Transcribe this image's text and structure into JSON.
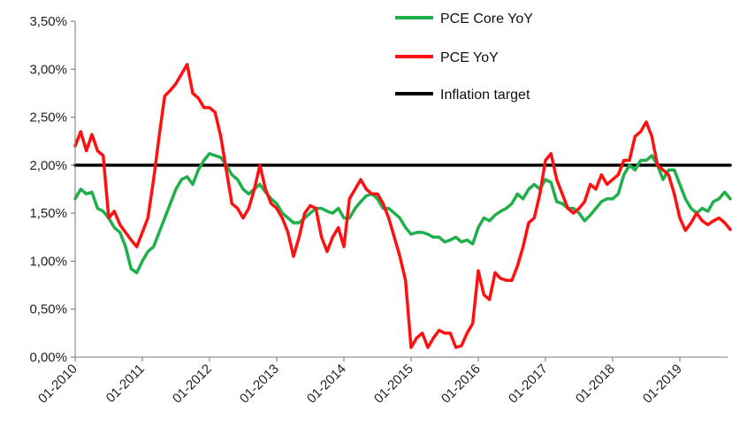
{
  "chart_data": {
    "type": "line",
    "title": "",
    "xlabel": "",
    "ylabel": "",
    "x_range": [
      "2010-01",
      "2019-10"
    ],
    "ylim": [
      0,
      3.5
    ],
    "yticks": [
      0,
      0.5,
      1.0,
      1.5,
      2.0,
      2.5,
      3.0,
      3.5
    ],
    "ytick_labels": [
      "0,00%",
      "0,50%",
      "1,00%",
      "1,50%",
      "2,00%",
      "2,50%",
      "3,00%",
      "3,50%"
    ],
    "xticks": [
      "2010-01",
      "2011-01",
      "2012-01",
      "2013-01",
      "2014-01",
      "2015-01",
      "2016-01",
      "2017-01",
      "2018-01",
      "2019-01"
    ],
    "xtick_labels": [
      "01-2010",
      "01-2011",
      "01-2012",
      "01-2013",
      "01-2014",
      "01-2015",
      "01-2016",
      "01-2017",
      "01-2018",
      "01-2019"
    ],
    "grid": false,
    "legend_position": "top-right",
    "series": [
      {
        "name": "PCE Core YoY",
        "color": "#20b04b",
        "points": [
          [
            "2010-01",
            1.65
          ],
          [
            "2010-02",
            1.75
          ],
          [
            "2010-03",
            1.7
          ],
          [
            "2010-04",
            1.72
          ],
          [
            "2010-05",
            1.55
          ],
          [
            "2010-06",
            1.52
          ],
          [
            "2010-07",
            1.45
          ],
          [
            "2010-08",
            1.35
          ],
          [
            "2010-09",
            1.3
          ],
          [
            "2010-10",
            1.15
          ],
          [
            "2010-11",
            0.92
          ],
          [
            "2010-12",
            0.88
          ],
          [
            "2011-01",
            1.0
          ],
          [
            "2011-02",
            1.1
          ],
          [
            "2011-03",
            1.15
          ],
          [
            "2011-04",
            1.3
          ],
          [
            "2011-05",
            1.45
          ],
          [
            "2011-06",
            1.6
          ],
          [
            "2011-07",
            1.75
          ],
          [
            "2011-08",
            1.85
          ],
          [
            "2011-09",
            1.88
          ],
          [
            "2011-10",
            1.8
          ],
          [
            "2011-11",
            1.95
          ],
          [
            "2011-12",
            2.05
          ],
          [
            "2012-01",
            2.12
          ],
          [
            "2012-02",
            2.1
          ],
          [
            "2012-03",
            2.08
          ],
          [
            "2012-04",
            2.0
          ],
          [
            "2012-05",
            1.9
          ],
          [
            "2012-06",
            1.85
          ],
          [
            "2012-07",
            1.75
          ],
          [
            "2012-08",
            1.7
          ],
          [
            "2012-09",
            1.75
          ],
          [
            "2012-10",
            1.8
          ],
          [
            "2012-11",
            1.72
          ],
          [
            "2012-12",
            1.65
          ],
          [
            "2013-01",
            1.6
          ],
          [
            "2013-02",
            1.5
          ],
          [
            "2013-03",
            1.45
          ],
          [
            "2013-04",
            1.4
          ],
          [
            "2013-05",
            1.4
          ],
          [
            "2013-06",
            1.45
          ],
          [
            "2013-07",
            1.5
          ],
          [
            "2013-08",
            1.55
          ],
          [
            "2013-09",
            1.55
          ],
          [
            "2013-10",
            1.52
          ],
          [
            "2013-11",
            1.5
          ],
          [
            "2013-12",
            1.55
          ],
          [
            "2014-01",
            1.45
          ],
          [
            "2014-02",
            1.45
          ],
          [
            "2014-03",
            1.55
          ],
          [
            "2014-04",
            1.62
          ],
          [
            "2014-05",
            1.68
          ],
          [
            "2014-06",
            1.7
          ],
          [
            "2014-07",
            1.65
          ],
          [
            "2014-08",
            1.55
          ],
          [
            "2014-09",
            1.55
          ],
          [
            "2014-10",
            1.5
          ],
          [
            "2014-11",
            1.45
          ],
          [
            "2014-12",
            1.35
          ],
          [
            "2015-01",
            1.28
          ],
          [
            "2015-02",
            1.3
          ],
          [
            "2015-03",
            1.3
          ],
          [
            "2015-04",
            1.28
          ],
          [
            "2015-05",
            1.25
          ],
          [
            "2015-06",
            1.25
          ],
          [
            "2015-07",
            1.2
          ],
          [
            "2015-08",
            1.22
          ],
          [
            "2015-09",
            1.25
          ],
          [
            "2015-10",
            1.2
          ],
          [
            "2015-11",
            1.22
          ],
          [
            "2015-12",
            1.18
          ],
          [
            "2016-01",
            1.35
          ],
          [
            "2016-02",
            1.45
          ],
          [
            "2016-03",
            1.42
          ],
          [
            "2016-04",
            1.48
          ],
          [
            "2016-05",
            1.52
          ],
          [
            "2016-06",
            1.55
          ],
          [
            "2016-07",
            1.6
          ],
          [
            "2016-08",
            1.7
          ],
          [
            "2016-09",
            1.65
          ],
          [
            "2016-10",
            1.75
          ],
          [
            "2016-11",
            1.8
          ],
          [
            "2016-12",
            1.75
          ],
          [
            "2017-01",
            1.85
          ],
          [
            "2017-02",
            1.82
          ],
          [
            "2017-03",
            1.62
          ],
          [
            "2017-04",
            1.6
          ],
          [
            "2017-05",
            1.55
          ],
          [
            "2017-06",
            1.55
          ],
          [
            "2017-07",
            1.5
          ],
          [
            "2017-08",
            1.42
          ],
          [
            "2017-09",
            1.48
          ],
          [
            "2017-10",
            1.55
          ],
          [
            "2017-11",
            1.62
          ],
          [
            "2017-12",
            1.65
          ],
          [
            "2018-01",
            1.65
          ],
          [
            "2018-02",
            1.7
          ],
          [
            "2018-03",
            1.9
          ],
          [
            "2018-04",
            2.0
          ],
          [
            "2018-05",
            1.95
          ],
          [
            "2018-06",
            2.05
          ],
          [
            "2018-07",
            2.05
          ],
          [
            "2018-08",
            2.1
          ],
          [
            "2018-09",
            2.0
          ],
          [
            "2018-10",
            1.85
          ],
          [
            "2018-11",
            1.95
          ],
          [
            "2018-12",
            1.95
          ],
          [
            "2019-01",
            1.8
          ],
          [
            "2019-02",
            1.65
          ],
          [
            "2019-03",
            1.55
          ],
          [
            "2019-04",
            1.5
          ],
          [
            "2019-05",
            1.55
          ],
          [
            "2019-06",
            1.52
          ],
          [
            "2019-07",
            1.62
          ],
          [
            "2019-08",
            1.65
          ],
          [
            "2019-09",
            1.72
          ],
          [
            "2019-10",
            1.65
          ]
        ]
      },
      {
        "name": "PCE YoY",
        "color": "#ff1111",
        "points": [
          [
            "2010-01",
            2.2
          ],
          [
            "2010-02",
            2.35
          ],
          [
            "2010-03",
            2.15
          ],
          [
            "2010-04",
            2.32
          ],
          [
            "2010-05",
            2.15
          ],
          [
            "2010-06",
            2.1
          ],
          [
            "2010-07",
            1.45
          ],
          [
            "2010-08",
            1.52
          ],
          [
            "2010-09",
            1.38
          ],
          [
            "2010-10",
            1.3
          ],
          [
            "2010-11",
            1.22
          ],
          [
            "2010-12",
            1.15
          ],
          [
            "2011-01",
            1.3
          ],
          [
            "2011-02",
            1.45
          ],
          [
            "2011-03",
            1.85
          ],
          [
            "2011-04",
            2.3
          ],
          [
            "2011-05",
            2.72
          ],
          [
            "2011-06",
            2.78
          ],
          [
            "2011-07",
            2.85
          ],
          [
            "2011-08",
            2.95
          ],
          [
            "2011-09",
            3.05
          ],
          [
            "2011-10",
            2.75
          ],
          [
            "2011-11",
            2.7
          ],
          [
            "2011-12",
            2.6
          ],
          [
            "2012-01",
            2.6
          ],
          [
            "2012-02",
            2.55
          ],
          [
            "2012-03",
            2.3
          ],
          [
            "2012-04",
            1.95
          ],
          [
            "2012-05",
            1.6
          ],
          [
            "2012-06",
            1.55
          ],
          [
            "2012-07",
            1.45
          ],
          [
            "2012-08",
            1.55
          ],
          [
            "2012-09",
            1.75
          ],
          [
            "2012-10",
            2.0
          ],
          [
            "2012-11",
            1.75
          ],
          [
            "2012-12",
            1.6
          ],
          [
            "2013-01",
            1.55
          ],
          [
            "2013-02",
            1.45
          ],
          [
            "2013-03",
            1.3
          ],
          [
            "2013-04",
            1.05
          ],
          [
            "2013-05",
            1.25
          ],
          [
            "2013-06",
            1.5
          ],
          [
            "2013-07",
            1.58
          ],
          [
            "2013-08",
            1.55
          ],
          [
            "2013-09",
            1.25
          ],
          [
            "2013-10",
            1.1
          ],
          [
            "2013-11",
            1.25
          ],
          [
            "2013-12",
            1.35
          ],
          [
            "2014-01",
            1.15
          ],
          [
            "2014-02",
            1.65
          ],
          [
            "2014-03",
            1.75
          ],
          [
            "2014-04",
            1.85
          ],
          [
            "2014-05",
            1.75
          ],
          [
            "2014-06",
            1.7
          ],
          [
            "2014-07",
            1.7
          ],
          [
            "2014-08",
            1.6
          ],
          [
            "2014-09",
            1.45
          ],
          [
            "2014-10",
            1.25
          ],
          [
            "2014-11",
            1.05
          ],
          [
            "2014-12",
            0.8
          ],
          [
            "2015-01",
            0.1
          ],
          [
            "2015-02",
            0.2
          ],
          [
            "2015-03",
            0.25
          ],
          [
            "2015-04",
            0.1
          ],
          [
            "2015-05",
            0.2
          ],
          [
            "2015-06",
            0.28
          ],
          [
            "2015-07",
            0.25
          ],
          [
            "2015-08",
            0.25
          ],
          [
            "2015-09",
            0.1
          ],
          [
            "2015-10",
            0.12
          ],
          [
            "2015-11",
            0.25
          ],
          [
            "2015-12",
            0.35
          ],
          [
            "2016-01",
            0.9
          ],
          [
            "2016-02",
            0.65
          ],
          [
            "2016-03",
            0.6
          ],
          [
            "2016-04",
            0.88
          ],
          [
            "2016-05",
            0.82
          ],
          [
            "2016-06",
            0.8
          ],
          [
            "2016-07",
            0.8
          ],
          [
            "2016-08",
            0.95
          ],
          [
            "2016-09",
            1.15
          ],
          [
            "2016-10",
            1.4
          ],
          [
            "2016-11",
            1.45
          ],
          [
            "2016-12",
            1.7
          ],
          [
            "2017-01",
            2.05
          ],
          [
            "2017-02",
            2.12
          ],
          [
            "2017-03",
            1.85
          ],
          [
            "2017-04",
            1.7
          ],
          [
            "2017-05",
            1.55
          ],
          [
            "2017-06",
            1.5
          ],
          [
            "2017-07",
            1.55
          ],
          [
            "2017-08",
            1.62
          ],
          [
            "2017-09",
            1.8
          ],
          [
            "2017-10",
            1.75
          ],
          [
            "2017-11",
            1.9
          ],
          [
            "2017-12",
            1.8
          ],
          [
            "2018-01",
            1.85
          ],
          [
            "2018-02",
            1.9
          ],
          [
            "2018-03",
            2.05
          ],
          [
            "2018-04",
            2.05
          ],
          [
            "2018-05",
            2.3
          ],
          [
            "2018-06",
            2.35
          ],
          [
            "2018-07",
            2.45
          ],
          [
            "2018-08",
            2.3
          ],
          [
            "2018-09",
            2.0
          ],
          [
            "2018-10",
            1.95
          ],
          [
            "2018-11",
            1.9
          ],
          [
            "2018-12",
            1.7
          ],
          [
            "2019-01",
            1.45
          ],
          [
            "2019-02",
            1.32
          ],
          [
            "2019-03",
            1.4
          ],
          [
            "2019-04",
            1.5
          ],
          [
            "2019-05",
            1.42
          ],
          [
            "2019-06",
            1.38
          ],
          [
            "2019-07",
            1.42
          ],
          [
            "2019-08",
            1.45
          ],
          [
            "2019-09",
            1.4
          ],
          [
            "2019-10",
            1.33
          ]
        ]
      },
      {
        "name": "Inflation target",
        "color": "#000000",
        "points": [
          [
            "2010-01",
            2.0
          ],
          [
            "2019-10",
            2.0
          ]
        ]
      }
    ]
  }
}
